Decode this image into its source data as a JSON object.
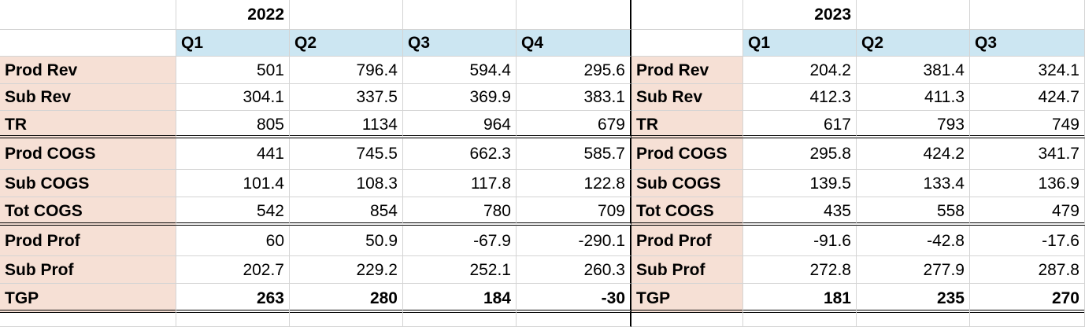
{
  "left": {
    "year": "2022",
    "quarters": [
      "Q1",
      "Q2",
      "Q3",
      "Q4"
    ],
    "rows": [
      {
        "label": "Prod Rev",
        "values": [
          "501",
          "796.4",
          "594.4",
          "295.6"
        ]
      },
      {
        "label": "Sub Rev",
        "values": [
          "304.1",
          "337.5",
          "369.9",
          "383.1"
        ]
      },
      {
        "label": "TR",
        "values": [
          "805",
          "1134",
          "964",
          "679"
        ]
      },
      {
        "label": "Prod COGS",
        "values": [
          "441",
          "745.5",
          "662.3",
          "585.7"
        ]
      },
      {
        "label": "Sub COGS",
        "values": [
          "101.4",
          "108.3",
          "117.8",
          "122.8"
        ]
      },
      {
        "label": "Tot COGS",
        "values": [
          "542",
          "854",
          "780",
          "709"
        ]
      },
      {
        "label": "Prod Prof",
        "values": [
          "60",
          "50.9",
          "-67.9",
          "-290.1"
        ]
      },
      {
        "label": "Sub Prof",
        "values": [
          "202.7",
          "229.2",
          "252.1",
          "260.3"
        ]
      },
      {
        "label": "TGP",
        "values": [
          "263",
          "280",
          "184",
          "-30"
        ]
      }
    ]
  },
  "right": {
    "year": "2023",
    "quarters": [
      "Q1",
      "Q2",
      "Q3"
    ],
    "rows": [
      {
        "label": "Prod Rev",
        "values": [
          "204.2",
          "381.4",
          "324.1"
        ]
      },
      {
        "label": "Sub Rev",
        "values": [
          "412.3",
          "411.3",
          "424.7"
        ]
      },
      {
        "label": "TR",
        "values": [
          "617",
          "793",
          "749"
        ]
      },
      {
        "label": "Prod COGS",
        "values": [
          "295.8",
          "424.2",
          "341.7"
        ]
      },
      {
        "label": "Sub COGS",
        "values": [
          "139.5",
          "133.4",
          "136.9"
        ]
      },
      {
        "label": "Tot COGS",
        "values": [
          "435",
          "558",
          "479"
        ]
      },
      {
        "label": "Prod Prof",
        "values": [
          "-91.6",
          "-42.8",
          "-17.6"
        ]
      },
      {
        "label": "Sub Prof",
        "values": [
          "272.8",
          "277.9",
          "287.8"
        ]
      },
      {
        "label": "TGP",
        "values": [
          "181",
          "235",
          "270"
        ]
      }
    ]
  },
  "colors": {
    "label_fill": "#f6e0d5",
    "header_fill": "#cce6f2",
    "gridline": "#d4d4d4"
  }
}
